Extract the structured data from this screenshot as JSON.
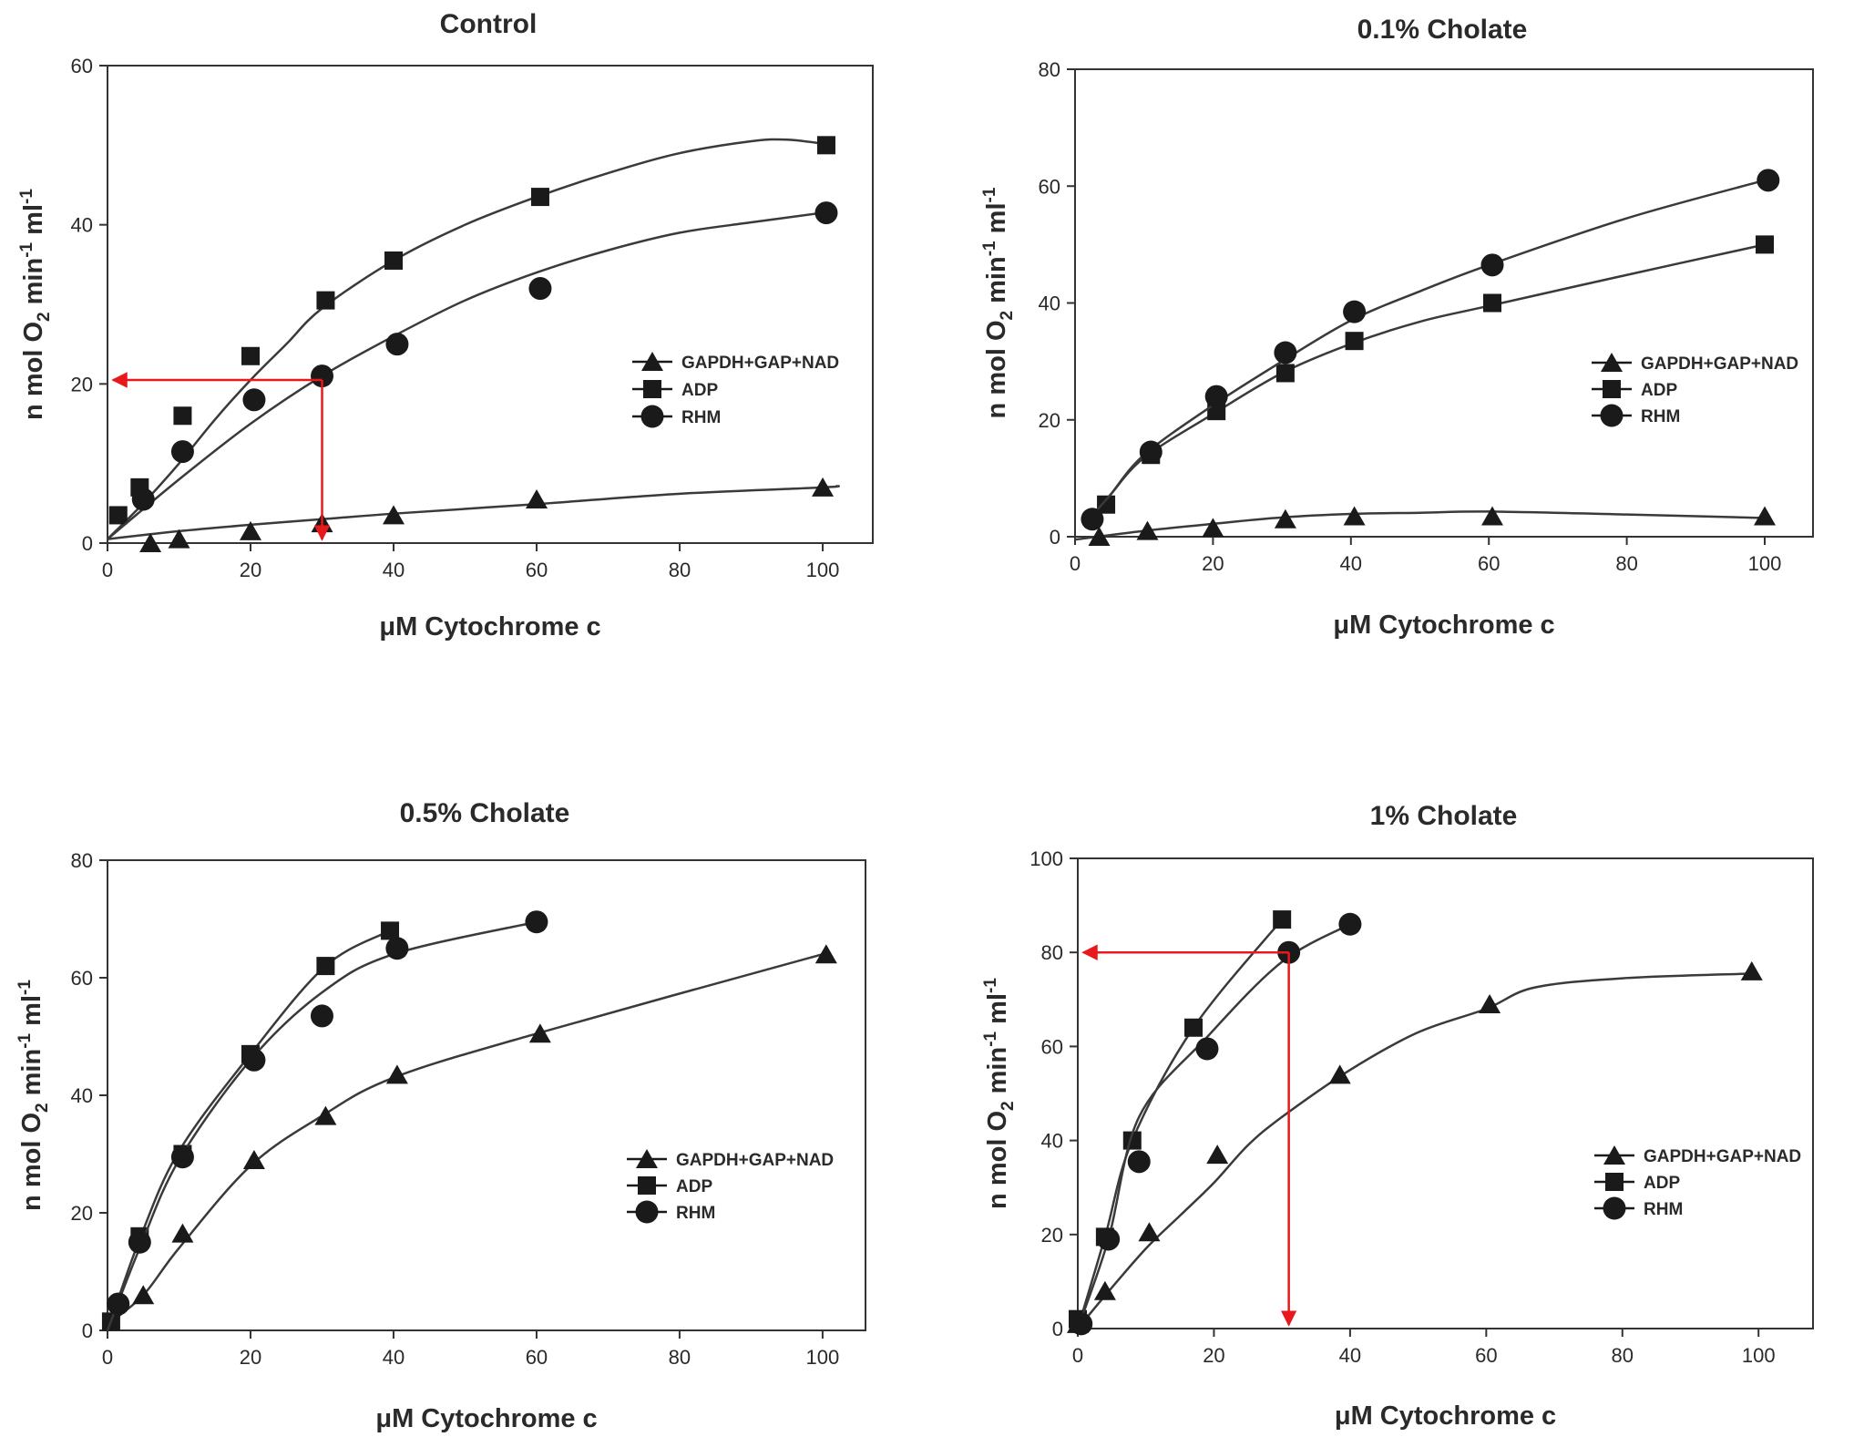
{
  "colors": {
    "ink": "#1a1a1a",
    "annotation": "#e8191c",
    "background": "#ffffff"
  },
  "chart_data": [
    {
      "type": "line",
      "title": "Control",
      "xlabel": "μM Cytochrome c",
      "ylabel": "n mol O2 min-1 ml-1",
      "ylabel_parts": {
        "a": "n mol O",
        "sub": "2",
        "b": " min",
        "sup1": "-1",
        "c": " ml",
        "sup2": "-1"
      },
      "xlim": [
        0,
        107
      ],
      "ylim": [
        0,
        60
      ],
      "xticks": [
        0,
        20,
        40,
        60,
        80,
        100
      ],
      "yticks": [
        0,
        20,
        40,
        60
      ],
      "legend_position": "center-right",
      "series": [
        {
          "name": "GAPDH+GAP+NAD",
          "marker": "triangle",
          "x": [
            6,
            10,
            20,
            30,
            40,
            60,
            100
          ],
          "y": [
            0,
            0.5,
            1.5,
            2.5,
            3.5,
            5.5,
            7
          ],
          "curve_x": [
            0,
            10,
            20,
            30,
            40,
            60,
            80,
            100,
            102
          ],
          "curve_y": [
            0.5,
            1.5,
            2.3,
            3,
            3.7,
            4.9,
            6.2,
            7,
            7.2
          ]
        },
        {
          "name": "ADP",
          "marker": "square",
          "x": [
            1.5,
            4.5,
            10.5,
            20,
            30.5,
            40,
            60.5,
            100.5
          ],
          "y": [
            3.5,
            7,
            16,
            23.5,
            30.5,
            35.5,
            43.5,
            50
          ],
          "curve_x": [
            0,
            5,
            10,
            15,
            20,
            25,
            30,
            40,
            50,
            60,
            70,
            80,
            90,
            95,
            100
          ],
          "curve_y": [
            0.5,
            5,
            10,
            15.5,
            20.5,
            25,
            29.5,
            35.5,
            40,
            43.5,
            46.5,
            49,
            50.5,
            50.7,
            50.2
          ]
        },
        {
          "name": "RHM",
          "marker": "circle",
          "x": [
            5,
            10.5,
            20.5,
            30,
            40.5,
            60.5,
            100.5
          ],
          "y": [
            5.5,
            11.5,
            18,
            21,
            25,
            32,
            41.5
          ],
          "curve_x": [
            0,
            10,
            20,
            30,
            40,
            50,
            60,
            70,
            80,
            90,
            100
          ],
          "curve_y": [
            0.5,
            8,
            15,
            21,
            26,
            30.5,
            34,
            36.8,
            39,
            40.3,
            41.5
          ]
        }
      ],
      "annotations": [
        {
          "type": "arrow-guide",
          "x": 30,
          "y": 20.5,
          "color": "#e8191c"
        }
      ]
    },
    {
      "type": "line",
      "title": "0.1% Cholate",
      "xlabel": "μM Cytochrome c",
      "ylabel": "n mol O2 min-1 ml-1",
      "ylabel_parts": {
        "a": "n mol O",
        "sub": "2",
        "b": " min",
        "sup1": "-1",
        "c": " ml",
        "sup2": "-1"
      },
      "xlim": [
        0,
        107
      ],
      "ylim": [
        0,
        80
      ],
      "xticks": [
        0,
        20,
        40,
        60,
        80,
        100
      ],
      "yticks": [
        0,
        20,
        40,
        60,
        80
      ],
      "legend_position": "center-right",
      "series": [
        {
          "name": "GAPDH+GAP+NAD",
          "marker": "triangle",
          "x": [
            3.5,
            10.5,
            20,
            30.5,
            40.5,
            60.5,
            100
          ],
          "y": [
            0,
            1,
            1.5,
            3,
            3.5,
            3.5,
            3.5
          ],
          "curve_x": [
            0,
            10,
            20,
            30,
            40,
            50,
            60,
            80,
            100
          ],
          "curve_y": [
            -0.5,
            1,
            2.2,
            3.3,
            3.9,
            4.1,
            4.3,
            3.8,
            3.2
          ]
        },
        {
          "name": "ADP",
          "marker": "square",
          "x": [
            4.5,
            11,
            20.5,
            30.5,
            40.5,
            60.5,
            100
          ],
          "y": [
            5.5,
            14,
            21.5,
            28,
            33.5,
            40,
            50
          ],
          "curve_x": [
            2,
            5,
            10,
            20,
            30,
            40,
            50,
            60,
            80,
            100
          ],
          "curve_y": [
            3,
            7,
            13.5,
            21,
            28,
            33,
            36.8,
            39.5,
            44.8,
            50
          ]
        },
        {
          "name": "RHM",
          "marker": "circle",
          "x": [
            2.5,
            11,
            20.5,
            30.5,
            40.5,
            60.5,
            100.5
          ],
          "y": [
            3,
            14.5,
            24,
            31.5,
            38.5,
            46.5,
            61
          ],
          "curve_x": [
            2,
            5,
            10,
            20,
            30,
            40,
            50,
            60,
            80,
            100
          ],
          "curve_y": [
            3,
            7,
            14,
            22.5,
            30,
            37,
            42,
            46.5,
            54.5,
            61
          ]
        }
      ]
    },
    {
      "type": "line",
      "title": "0.5% Cholate",
      "xlabel": "μM Cytochrome c",
      "ylabel": "n mol O2 min-1 ml-1",
      "ylabel_parts": {
        "a": "n mol O",
        "sub": "2",
        "b": " min",
        "sup1": "-1",
        "c": " ml",
        "sup2": "-1"
      },
      "xlim": [
        0,
        106
      ],
      "ylim": [
        0,
        80
      ],
      "xticks": [
        0,
        20,
        40,
        60,
        80,
        100
      ],
      "yticks": [
        0,
        20,
        40,
        60,
        80
      ],
      "legend_position": "center-right",
      "series": [
        {
          "name": "GAPDH+GAP+NAD",
          "marker": "triangle",
          "x": [
            5,
            10.5,
            20.5,
            30.5,
            40.5,
            60.5,
            100.5
          ],
          "y": [
            6,
            16.5,
            29,
            36.5,
            43.5,
            50.5,
            64
          ],
          "curve_x": [
            0,
            5,
            10,
            20,
            30,
            40,
            60,
            100
          ],
          "curve_y": [
            1,
            6,
            14,
            28,
            36.5,
            43,
            50.5,
            64
          ]
        },
        {
          "name": "ADP",
          "marker": "square",
          "x": [
            0.5,
            4.5,
            10.5,
            20,
            30.5,
            39.5
          ],
          "y": [
            1.5,
            16,
            30,
            47,
            62,
            68
          ],
          "curve_x": [
            0,
            4.5,
            10,
            20,
            30.5,
            39.5
          ],
          "curve_y": [
            0,
            15.5,
            30.5,
            47,
            62,
            68
          ]
        },
        {
          "name": "RHM",
          "marker": "circle",
          "x": [
            1.5,
            4.5,
            10.5,
            20.5,
            30,
            40.5,
            60
          ],
          "y": [
            4.5,
            15,
            29.5,
            46,
            53.5,
            65,
            69.5
          ],
          "curve_x": [
            0,
            4.5,
            10,
            20,
            30,
            40,
            60
          ],
          "curve_y": [
            0,
            14,
            29,
            46,
            57.5,
            64,
            69.5
          ]
        }
      ]
    },
    {
      "type": "line",
      "title": "1% Cholate",
      "xlabel": "μM Cytochrome c",
      "ylabel": "n mol O2 min-1 ml-1",
      "ylabel_parts": {
        "a": "n mol O",
        "sub": "2",
        "b": " min",
        "sup1": "-1",
        "c": " ml",
        "sup2": "-1"
      },
      "xlim": [
        0,
        108
      ],
      "ylim": [
        0,
        100
      ],
      "xticks": [
        0,
        20,
        40,
        60,
        80,
        100
      ],
      "yticks": [
        0,
        20,
        40,
        60,
        80,
        100
      ],
      "legend_position": "center-right",
      "series": [
        {
          "name": "GAPDH+GAP+NAD",
          "marker": "triangle",
          "x": [
            0,
            4,
            10.5,
            20.5,
            38.5,
            60.5,
            99
          ],
          "y": [
            1,
            8,
            20.5,
            37,
            54,
            69,
            76
          ],
          "curve_x": [
            0,
            4,
            10,
            15,
            20,
            25,
            30,
            40,
            50,
            60,
            67,
            80,
            99
          ],
          "curve_y": [
            0,
            7,
            17,
            24,
            31,
            39,
            45,
            55,
            63,
            68,
            72.5,
            74.5,
            75.5
          ]
        },
        {
          "name": "ADP",
          "marker": "square",
          "x": [
            0,
            4,
            8,
            17,
            30
          ],
          "y": [
            2,
            19.5,
            40,
            64,
            87
          ],
          "curve_x": [
            0,
            4,
            8,
            17,
            30
          ],
          "curve_y": [
            0,
            19.5,
            40,
            64,
            87
          ]
        },
        {
          "name": "RHM",
          "marker": "circle",
          "x": [
            0.5,
            4.5,
            9,
            19,
            31,
            40
          ],
          "y": [
            1,
            19,
            35.5,
            59.5,
            80,
            86
          ],
          "curve_x": [
            0,
            4.5,
            9,
            19,
            30,
            40
          ],
          "curve_y": [
            0,
            19,
            45,
            62,
            78,
            86
          ]
        }
      ],
      "annotations": [
        {
          "type": "arrow-guide",
          "x": 31,
          "y": 80,
          "color": "#e8191c"
        }
      ]
    }
  ]
}
